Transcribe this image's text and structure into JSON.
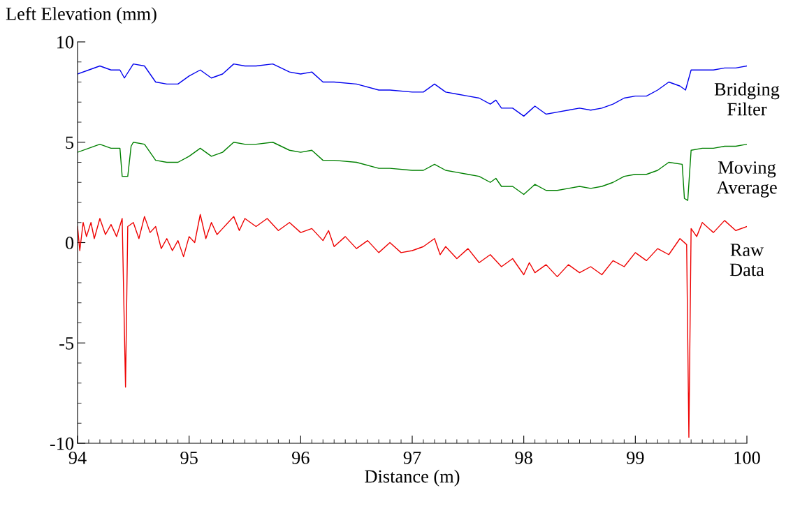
{
  "chart_data": {
    "type": "line",
    "ylabel": "Left Elevation (mm)",
    "xlabel": "Distance (m)",
    "xlim": [
      94,
      100
    ],
    "ylim": [
      -10,
      10
    ],
    "xticks": [
      94,
      {
        "value": 94.1,
        "label": null
      },
      {
        "value": 94.2,
        "label": null
      },
      {
        "value": 94.3,
        "label": null
      },
      {
        "value": 94.4,
        "label": null
      },
      {
        "value": 94.5,
        "label": null
      },
      {
        "value": 94.6,
        "label": null
      },
      {
        "value": 94.7,
        "label": null
      },
      {
        "value": 94.8,
        "label": null
      },
      {
        "value": 94.9,
        "label": null
      },
      95,
      {
        "value": 95.1,
        "label": null
      },
      {
        "value": 95.2,
        "label": null
      },
      {
        "value": 95.3,
        "label": null
      },
      {
        "value": 95.4,
        "label": null
      },
      {
        "value": 95.5,
        "label": null
      },
      {
        "value": 95.6,
        "label": null
      },
      {
        "value": 95.7,
        "label": null
      },
      {
        "value": 95.8,
        "label": null
      },
      {
        "value": 95.9,
        "label": null
      },
      96,
      {
        "value": 96.1,
        "label": null
      },
      {
        "value": 96.2,
        "label": null
      },
      {
        "value": 96.3,
        "label": null
      },
      {
        "value": 96.4,
        "label": null
      },
      {
        "value": 96.5,
        "label": null
      },
      {
        "value": 96.6,
        "label": null
      },
      {
        "value": 96.7,
        "label": null
      },
      {
        "value": 96.8,
        "label": null
      },
      {
        "value": 96.9,
        "label": null
      },
      97,
      {
        "value": 97.1,
        "label": null
      },
      {
        "value": 97.2,
        "label": null
      },
      {
        "value": 97.3,
        "label": null
      },
      {
        "value": 97.4,
        "label": null
      },
      {
        "value": 97.5,
        "label": null
      },
      {
        "value": 97.6,
        "label": null
      },
      {
        "value": 97.7,
        "label": null
      },
      {
        "value": 97.8,
        "label": null
      },
      {
        "value": 97.9,
        "label": null
      },
      98,
      {
        "value": 98.1,
        "label": null
      },
      {
        "value": 98.2,
        "label": null
      },
      {
        "value": 98.3,
        "label": null
      },
      {
        "value": 98.4,
        "label": null
      },
      {
        "value": 98.5,
        "label": null
      },
      {
        "value": 98.6,
        "label": null
      },
      {
        "value": 98.7,
        "label": null
      },
      {
        "value": 98.8,
        "label": null
      },
      {
        "value": 98.9,
        "label": null
      },
      99,
      {
        "value": 99.1,
        "label": null
      },
      {
        "value": 99.2,
        "label": null
      },
      {
        "value": 99.3,
        "label": null
      },
      {
        "value": 99.4,
        "label": null
      },
      {
        "value": 99.5,
        "label": null
      },
      {
        "value": 99.6,
        "label": null
      },
      {
        "value": 99.7,
        "label": null
      },
      {
        "value": 99.8,
        "label": null
      },
      {
        "value": 99.9,
        "label": null
      },
      100
    ],
    "yticks": [
      -10,
      {
        "value": -9,
        "label": null
      },
      {
        "value": -8,
        "label": null
      },
      {
        "value": -7,
        "label": null
      },
      {
        "value": -6,
        "label": null
      },
      -5,
      {
        "value": -4,
        "label": null
      },
      {
        "value": -3,
        "label": null
      },
      {
        "value": -2,
        "label": null
      },
      {
        "value": -1,
        "label": null
      },
      0,
      {
        "value": 1,
        "label": null
      },
      {
        "value": 2,
        "label": null
      },
      {
        "value": 3,
        "label": null
      },
      {
        "value": 4,
        "label": null
      },
      5,
      {
        "value": 6,
        "label": null
      },
      {
        "value": 7,
        "label": null
      },
      {
        "value": 8,
        "label": null
      },
      {
        "value": 9,
        "label": null
      },
      10
    ],
    "grid": false,
    "legend": false,
    "marker": "none",
    "line_style": "solid",
    "series": [
      {
        "name": "Bridging\nFilter",
        "color": "#0000ee",
        "x": [
          94.0,
          94.1,
          94.2,
          94.3,
          94.38,
          94.42,
          94.5,
          94.6,
          94.7,
          94.8,
          94.9,
          95.0,
          95.1,
          95.2,
          95.3,
          95.4,
          95.5,
          95.6,
          95.75,
          95.9,
          96.0,
          96.1,
          96.2,
          96.3,
          96.5,
          96.7,
          96.8,
          97.0,
          97.1,
          97.2,
          97.3,
          97.4,
          97.5,
          97.6,
          97.7,
          97.75,
          97.8,
          97.9,
          98.0,
          98.1,
          98.2,
          98.3,
          98.4,
          98.5,
          98.6,
          98.7,
          98.8,
          98.9,
          99.0,
          99.1,
          99.2,
          99.3,
          99.4,
          99.45,
          99.5,
          99.6,
          99.7,
          99.8,
          99.9,
          100.0
        ],
        "values": [
          8.4,
          8.6,
          8.8,
          8.6,
          8.6,
          8.2,
          8.9,
          8.8,
          8.0,
          7.9,
          7.9,
          8.3,
          8.6,
          8.2,
          8.4,
          8.9,
          8.8,
          8.8,
          8.9,
          8.5,
          8.4,
          8.5,
          8.0,
          8.0,
          7.9,
          7.6,
          7.6,
          7.5,
          7.5,
          7.9,
          7.5,
          7.4,
          7.3,
          7.2,
          6.9,
          7.1,
          6.7,
          6.7,
          6.3,
          6.8,
          6.4,
          6.5,
          6.6,
          6.7,
          6.6,
          6.7,
          6.9,
          7.2,
          7.3,
          7.3,
          7.6,
          8.0,
          7.8,
          7.6,
          8.6,
          8.6,
          8.6,
          8.7,
          8.7,
          8.8
        ]
      },
      {
        "name": "Moving\nAverage",
        "color": "#008000",
        "x": [
          94.0,
          94.1,
          94.2,
          94.3,
          94.38,
          94.4,
          94.45,
          94.48,
          94.5,
          94.6,
          94.7,
          94.8,
          94.9,
          95.0,
          95.1,
          95.2,
          95.3,
          95.4,
          95.5,
          95.6,
          95.75,
          95.9,
          96.0,
          96.1,
          96.2,
          96.3,
          96.5,
          96.7,
          96.8,
          97.0,
          97.1,
          97.2,
          97.3,
          97.4,
          97.5,
          97.6,
          97.7,
          97.75,
          97.8,
          97.9,
          98.0,
          98.1,
          98.2,
          98.3,
          98.4,
          98.5,
          98.6,
          98.7,
          98.8,
          98.9,
          99.0,
          99.1,
          99.2,
          99.3,
          99.42,
          99.44,
          99.47,
          99.5,
          99.6,
          99.7,
          99.8,
          99.9,
          100.0
        ],
        "values": [
          4.5,
          4.7,
          4.9,
          4.7,
          4.7,
          3.3,
          3.3,
          4.8,
          5.0,
          4.9,
          4.1,
          4.0,
          4.0,
          4.3,
          4.7,
          4.3,
          4.5,
          5.0,
          4.9,
          4.9,
          5.0,
          4.6,
          4.5,
          4.6,
          4.1,
          4.1,
          4.0,
          3.7,
          3.7,
          3.6,
          3.6,
          3.9,
          3.6,
          3.5,
          3.4,
          3.3,
          3.0,
          3.2,
          2.8,
          2.8,
          2.4,
          2.9,
          2.6,
          2.6,
          2.7,
          2.8,
          2.7,
          2.8,
          3.0,
          3.3,
          3.4,
          3.4,
          3.6,
          4.0,
          3.9,
          2.2,
          2.1,
          4.6,
          4.7,
          4.7,
          4.8,
          4.8,
          4.9
        ]
      },
      {
        "name": "Raw\nData",
        "color": "#ee0000",
        "x": [
          94.0,
          94.02,
          94.05,
          94.08,
          94.12,
          94.15,
          94.2,
          94.25,
          94.3,
          94.35,
          94.4,
          94.43,
          94.45,
          94.5,
          94.55,
          94.6,
          94.65,
          94.7,
          94.75,
          94.8,
          94.85,
          94.9,
          94.95,
          95.0,
          95.05,
          95.1,
          95.15,
          95.2,
          95.25,
          95.3,
          95.35,
          95.4,
          95.45,
          95.5,
          95.6,
          95.7,
          95.8,
          95.9,
          96.0,
          96.1,
          96.2,
          96.25,
          96.3,
          96.4,
          96.5,
          96.6,
          96.7,
          96.8,
          96.9,
          97.0,
          97.1,
          97.2,
          97.25,
          97.3,
          97.4,
          97.5,
          97.6,
          97.7,
          97.8,
          97.9,
          98.0,
          98.05,
          98.1,
          98.2,
          98.3,
          98.4,
          98.5,
          98.6,
          98.7,
          98.8,
          98.9,
          99.0,
          99.1,
          99.2,
          99.3,
          99.4,
          99.46,
          99.48,
          99.5,
          99.55,
          99.6,
          99.7,
          99.8,
          99.9,
          100.0
        ],
        "values": [
          0.8,
          -0.4,
          1.0,
          0.3,
          1.0,
          0.2,
          1.2,
          0.4,
          0.9,
          0.3,
          1.2,
          -7.2,
          0.8,
          1.0,
          0.2,
          1.3,
          0.5,
          0.8,
          -0.3,
          0.2,
          -0.4,
          0.1,
          -0.7,
          0.3,
          0.0,
          1.4,
          0.2,
          1.0,
          0.4,
          0.7,
          1.0,
          1.3,
          0.6,
          1.2,
          0.8,
          1.2,
          0.6,
          1.0,
          0.5,
          0.7,
          0.1,
          0.6,
          -0.2,
          0.3,
          -0.3,
          0.1,
          -0.5,
          0.0,
          -0.5,
          -0.4,
          -0.2,
          0.2,
          -0.6,
          -0.2,
          -0.8,
          -0.3,
          -1.0,
          -0.6,
          -1.2,
          -0.8,
          -1.6,
          -1.0,
          -1.5,
          -1.1,
          -1.7,
          -1.1,
          -1.5,
          -1.2,
          -1.6,
          -0.9,
          -1.2,
          -0.5,
          -0.9,
          -0.3,
          -0.6,
          0.2,
          -0.1,
          -9.7,
          0.7,
          0.3,
          1.0,
          0.5,
          1.1,
          0.6,
          0.8
        ]
      }
    ]
  }
}
